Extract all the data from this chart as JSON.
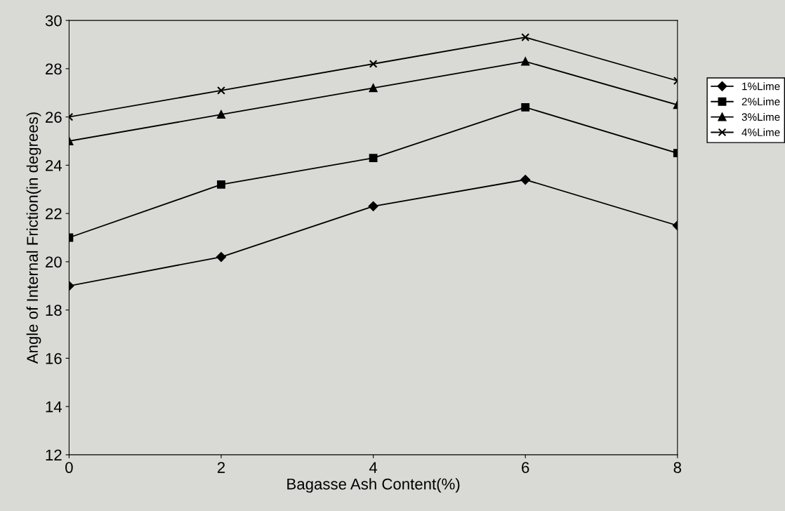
{
  "chart_data": {
    "type": "line",
    "xlabel": "Bagasse Ash Content(%)",
    "ylabel": "Angle of Internal Friction(in degrees)",
    "x": [
      0,
      2,
      4,
      6,
      8
    ],
    "series": [
      {
        "name": "1%Lime",
        "color": "#000000",
        "marker": "diamond",
        "values": [
          19,
          20.2,
          22.3,
          23.4,
          21.5
        ]
      },
      {
        "name": "2%Lime",
        "color": "#000000",
        "marker": "square",
        "values": [
          21,
          23.2,
          24.3,
          26.4,
          24.5
        ]
      },
      {
        "name": "3%Lime",
        "color": "#000000",
        "marker": "triangle",
        "values": [
          25,
          26.1,
          27.2,
          28.3,
          26.5
        ]
      },
      {
        "name": "4%Lime",
        "color": "#000000",
        "marker": "cross",
        "values": [
          26,
          27.1,
          28.2,
          29.3,
          27.5
        ]
      }
    ],
    "xlim": [
      0,
      8
    ],
    "xticks": [
      0,
      2,
      4,
      6,
      8
    ],
    "ylim": [
      12,
      30
    ],
    "yticks": [
      12,
      14,
      16,
      18,
      20,
      22,
      24,
      26,
      28,
      30
    ],
    "grid": false,
    "legend": "right",
    "line_style": "solid"
  }
}
